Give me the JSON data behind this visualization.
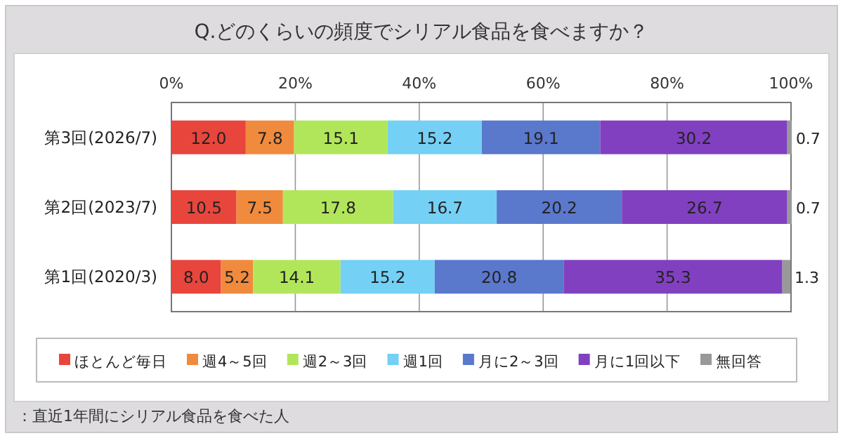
{
  "chart_data": {
    "type": "bar",
    "orientation": "horizontal",
    "stacked": true,
    "title": "Q.どのくらいの頻度でシリアル食品を食べますか？",
    "categories": [
      "第3回(2026/7)",
      "第2回(2023/7)",
      "第1回(2020/3)"
    ],
    "series": [
      {
        "name": "ほとんど毎日",
        "color": "#e8453c",
        "values": [
          12.0,
          10.5,
          8.0
        ],
        "value_labels": [
          "12.0",
          "10.5",
          "8.0"
        ]
      },
      {
        "name": "週4～5回",
        "color": "#f08a3c",
        "values": [
          7.8,
          7.5,
          5.2
        ],
        "value_labels": [
          "7.8",
          "7.5",
          "5.2"
        ]
      },
      {
        "name": "週2～3回",
        "color": "#b2e65a",
        "values": [
          15.1,
          17.8,
          14.1
        ],
        "value_labels": [
          "15.1",
          "17.8",
          "14.1"
        ]
      },
      {
        "name": "週1回",
        "color": "#74d0f4",
        "values": [
          15.2,
          16.7,
          15.2
        ],
        "value_labels": [
          "15.2",
          "16.7",
          "15.2"
        ]
      },
      {
        "name": "月に2～3回",
        "color": "#5a78cc",
        "values": [
          19.1,
          20.2,
          20.8
        ],
        "value_labels": [
          "19.1",
          "20.2",
          "20.8"
        ]
      },
      {
        "name": "月に1回以下",
        "color": "#8040c0",
        "values": [
          30.2,
          26.7,
          35.3
        ],
        "value_labels": [
          "30.2",
          "26.7",
          "35.3"
        ]
      },
      {
        "name": "無回答",
        "color": "#999999",
        "values": [
          0.7,
          0.7,
          1.3
        ],
        "value_labels": [
          "0.7",
          "0.7",
          "1.3"
        ]
      }
    ],
    "xlim": [
      0,
      100
    ],
    "xticks": [
      {
        "value": 0,
        "label": "0%"
      },
      {
        "value": 20,
        "label": "20%"
      },
      {
        "value": 40,
        "label": "40%"
      },
      {
        "value": 60,
        "label": "60%"
      },
      {
        "value": 80,
        "label": "80%"
      },
      {
        "value": 100,
        "label": "100%"
      }
    ],
    "grid": "x",
    "legend": "bottom",
    "annotations": [
      "：直近1年間にシリアル食品を食べた人"
    ]
  }
}
